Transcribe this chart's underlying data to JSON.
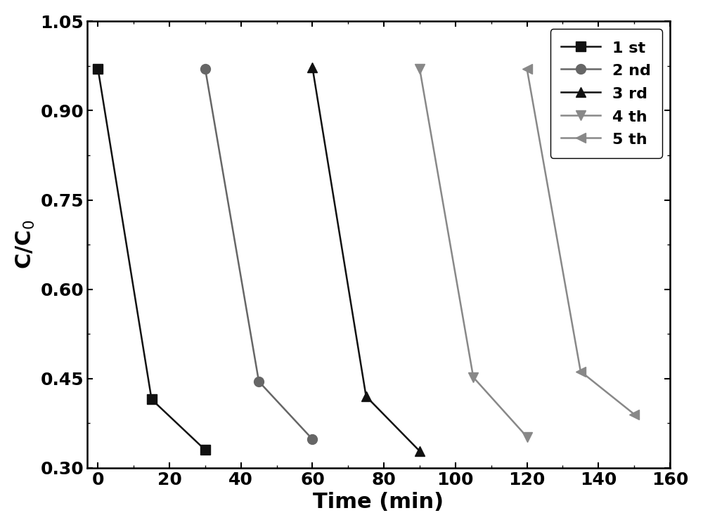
{
  "series": [
    {
      "label": "1 st",
      "x": [
        0,
        15,
        30
      ],
      "y": [
        0.97,
        0.415,
        0.33
      ],
      "color": "#111111",
      "marker": "s",
      "markersize": 10,
      "linewidth": 1.8
    },
    {
      "label": "2 nd",
      "x": [
        30,
        45,
        60
      ],
      "y": [
        0.97,
        0.445,
        0.348
      ],
      "color": "#666666",
      "marker": "o",
      "markersize": 10,
      "linewidth": 1.8
    },
    {
      "label": "3 rd",
      "x": [
        60,
        75,
        90
      ],
      "y": [
        0.972,
        0.42,
        0.328
      ],
      "color": "#111111",
      "marker": "^",
      "markersize": 10,
      "linewidth": 1.8
    },
    {
      "label": "4 th",
      "x": [
        90,
        105,
        120
      ],
      "y": [
        0.97,
        0.452,
        0.352
      ],
      "color": "#888888",
      "marker": "v",
      "markersize": 10,
      "linewidth": 1.8
    },
    {
      "label": "5 th",
      "x": [
        120,
        135,
        150
      ],
      "y": [
        0.97,
        0.462,
        0.39
      ],
      "color": "#888888",
      "marker": "<",
      "markersize": 10,
      "linewidth": 1.8
    }
  ],
  "xlabel": "Time (min)",
  "ylabel": "C/C$_0$",
  "xlim": [
    -3,
    160
  ],
  "ylim": [
    0.3,
    1.05
  ],
  "xticks": [
    0,
    20,
    40,
    60,
    80,
    100,
    120,
    140,
    160
  ],
  "yticks": [
    0.3,
    0.45,
    0.6,
    0.75,
    0.9,
    1.05
  ],
  "xlabel_fontsize": 22,
  "ylabel_fontsize": 22,
  "tick_fontsize": 18,
  "legend_fontsize": 16,
  "background_color": "#ffffff",
  "figure_facecolor": "#ffffff"
}
